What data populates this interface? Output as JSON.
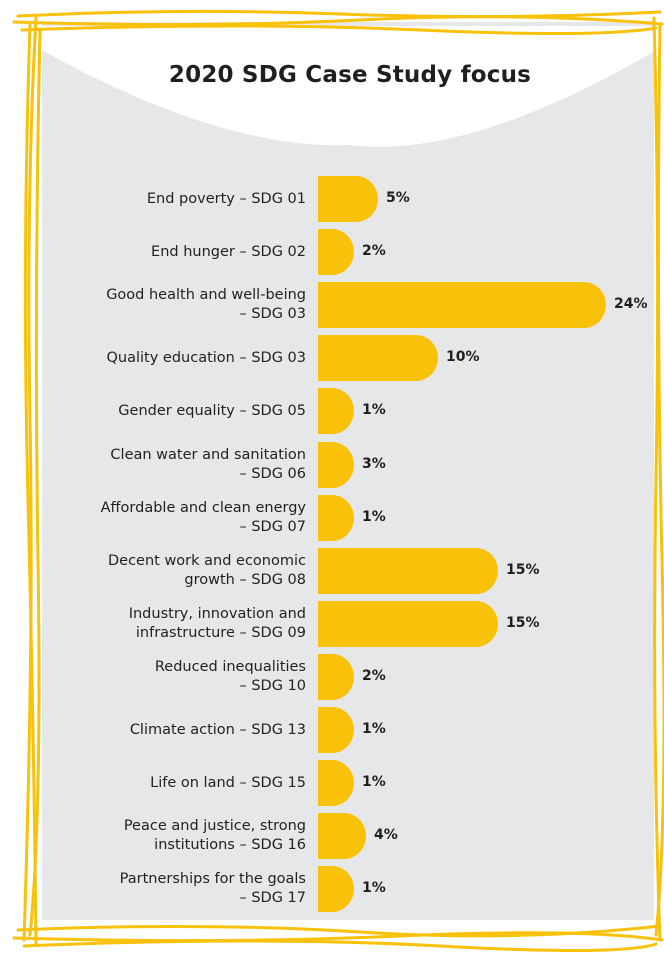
{
  "chart_data": {
    "type": "bar",
    "orientation": "horizontal",
    "title": "2020 SDG Case Study focus",
    "categories": [
      [
        "End poverty – SDG 01"
      ],
      [
        "End hunger – SDG 02"
      ],
      [
        "Good health and well-being",
        "– SDG 03"
      ],
      [
        "Quality education – SDG 03"
      ],
      [
        "Gender equality – SDG 05"
      ],
      [
        "Clean water and sanitation",
        "– SDG 06"
      ],
      [
        "Affordable and clean energy",
        "– SDG 07"
      ],
      [
        "Decent work and economic",
        "growth – SDG 08"
      ],
      [
        "Industry, innovation and",
        "infrastructure – SDG 09"
      ],
      [
        "Reduced inequalities",
        "– SDG 10"
      ],
      [
        "Climate action – SDG 13"
      ],
      [
        "Life on land – SDG 15"
      ],
      [
        "Peace and justice, strong",
        "institutions – SDG 16"
      ],
      [
        "Partnerships for the goals",
        "– SDG 17"
      ]
    ],
    "values": [
      5,
      2,
      24,
      10,
      1,
      3,
      1,
      15,
      15,
      2,
      1,
      1,
      4,
      1
    ],
    "value_labels": [
      "5%",
      "2%",
      "24%",
      "10%",
      "1%",
      "3%",
      "1%",
      "15%",
      "15%",
      "2%",
      "1%",
      "1%",
      "4%",
      "1%"
    ],
    "unit": "%",
    "grid": false,
    "legend": "none"
  },
  "colors": {
    "bar": "#f8c10a",
    "panel": "#e6e7e8",
    "frame": "#f8c10a",
    "text": "#1f1f1f"
  }
}
